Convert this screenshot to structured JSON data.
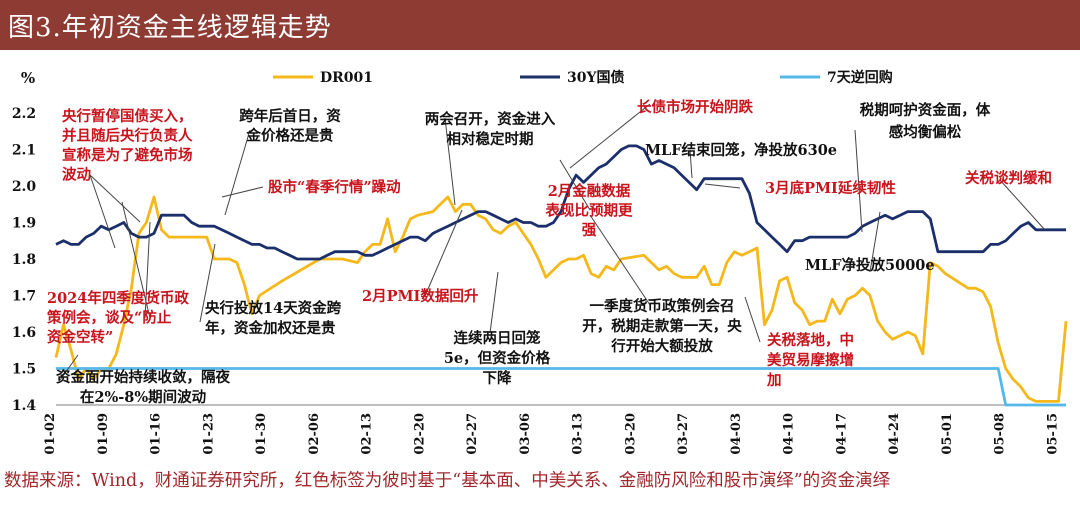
{
  "header": {
    "title": "图3.年初资金主线逻辑走势"
  },
  "chart_data": {
    "type": "line",
    "y_unit": "%",
    "ylim": [
      1.4,
      2.2
    ],
    "yticks": [
      "2.2",
      "2.1",
      "2.0",
      "1.9",
      "1.8",
      "1.7",
      "1.6",
      "1.5",
      "1.4"
    ],
    "x_tick_labels": [
      "01-02",
      "01-09",
      "01-16",
      "01-23",
      "01-30",
      "02-06",
      "02-13",
      "02-20",
      "02-27",
      "03-06",
      "03-13",
      "03-20",
      "03-27",
      "04-03",
      "04-10",
      "04-17",
      "04-24",
      "05-01",
      "05-08",
      "05-15"
    ],
    "legend": [
      "DR001",
      "30Y国债",
      "7天逆回购"
    ],
    "series": [
      {
        "name": "DR001",
        "color": "#f5b81b",
        "values": [
          [
            0,
            1.53
          ],
          [
            1,
            1.62
          ],
          [
            2,
            1.55
          ],
          [
            3,
            1.47
          ],
          [
            4,
            1.5
          ],
          [
            5,
            1.47
          ],
          [
            6,
            1.5
          ],
          [
            7,
            1.5
          ],
          [
            8,
            1.54
          ],
          [
            9,
            1.62
          ],
          [
            10,
            1.72
          ],
          [
            11,
            1.87
          ],
          [
            12,
            1.9
          ],
          [
            13,
            1.97
          ],
          [
            14,
            1.88
          ],
          [
            15,
            1.86
          ],
          [
            16,
            1.86
          ],
          [
            19,
            1.86
          ],
          [
            20,
            1.86
          ],
          [
            21,
            1.8
          ],
          [
            22,
            1.8
          ],
          [
            23,
            1.8
          ],
          [
            24,
            1.79
          ],
          [
            25,
            1.73
          ],
          [
            26,
            1.65
          ],
          [
            27,
            1.7
          ],
          [
            30,
            1.74
          ],
          [
            35,
            1.8
          ],
          [
            38,
            1.8
          ],
          [
            40,
            1.79
          ],
          [
            41,
            1.82
          ],
          [
            42,
            1.84
          ],
          [
            43,
            1.84
          ],
          [
            44,
            1.91
          ],
          [
            45,
            1.82
          ],
          [
            46,
            1.86
          ],
          [
            47,
            1.91
          ],
          [
            48,
            1.92
          ],
          [
            50,
            1.93
          ],
          [
            51,
            1.95
          ],
          [
            52,
            1.97
          ],
          [
            53,
            1.93
          ],
          [
            54,
            1.95
          ],
          [
            55,
            1.95
          ],
          [
            56,
            1.92
          ],
          [
            57,
            1.91
          ],
          [
            58,
            1.88
          ],
          [
            59,
            1.87
          ],
          [
            60,
            1.89
          ],
          [
            61,
            1.9
          ],
          [
            62,
            1.87
          ],
          [
            63,
            1.84
          ],
          [
            64,
            1.8
          ],
          [
            65,
            1.75
          ],
          [
            66,
            1.77
          ],
          [
            67,
            1.79
          ],
          [
            68,
            1.8
          ],
          [
            69,
            1.8
          ],
          [
            70,
            1.81
          ],
          [
            71,
            1.76
          ],
          [
            72,
            1.75
          ],
          [
            73,
            1.78
          ],
          [
            74,
            1.77
          ],
          [
            75,
            1.8
          ],
          [
            78,
            1.81
          ],
          [
            79,
            1.79
          ],
          [
            80,
            1.77
          ],
          [
            81,
            1.78
          ],
          [
            82,
            1.76
          ],
          [
            83,
            1.75
          ],
          [
            84,
            1.75
          ],
          [
            85,
            1.75
          ],
          [
            86,
            1.78
          ],
          [
            87,
            1.73
          ],
          [
            88,
            1.73
          ],
          [
            89,
            1.79
          ],
          [
            90,
            1.82
          ],
          [
            91,
            1.81
          ],
          [
            92,
            1.82
          ],
          [
            93,
            1.83
          ],
          [
            94,
            1.62
          ],
          [
            95,
            1.66
          ],
          [
            96,
            1.74
          ],
          [
            97,
            1.75
          ],
          [
            98,
            1.68
          ],
          [
            99,
            1.66
          ],
          [
            100,
            1.62
          ],
          [
            101,
            1.63
          ],
          [
            102,
            1.63
          ],
          [
            103,
            1.69
          ],
          [
            104,
            1.65
          ],
          [
            105,
            1.69
          ],
          [
            106,
            1.7
          ],
          [
            107,
            1.72
          ],
          [
            108,
            1.7
          ],
          [
            109,
            1.63
          ],
          [
            110,
            1.6
          ],
          [
            111,
            1.58
          ],
          [
            112,
            1.59
          ],
          [
            113,
            1.6
          ],
          [
            114,
            1.59
          ],
          [
            115,
            1.54
          ],
          [
            116,
            1.79
          ],
          [
            117,
            1.78
          ],
          [
            118,
            1.76
          ],
          [
            121,
            1.72
          ],
          [
            122,
            1.72
          ],
          [
            123,
            1.71
          ],
          [
            124,
            1.67
          ],
          [
            125,
            1.57
          ],
          [
            126,
            1.5
          ],
          [
            127,
            1.47
          ],
          [
            128,
            1.45
          ],
          [
            129,
            1.42
          ],
          [
            130,
            1.41
          ],
          [
            131,
            1.41
          ],
          [
            132,
            1.41
          ],
          [
            133,
            1.41
          ],
          [
            134,
            1.63
          ]
        ]
      },
      {
        "name": "30Y国债",
        "color": "#1b2f6b",
        "values": [
          [
            0,
            1.84
          ],
          [
            1,
            1.85
          ],
          [
            2,
            1.84
          ],
          [
            3,
            1.84
          ],
          [
            4,
            1.86
          ],
          [
            5,
            1.87
          ],
          [
            6,
            1.89
          ],
          [
            7,
            1.88
          ],
          [
            8,
            1.89
          ],
          [
            9,
            1.9
          ],
          [
            10,
            1.87
          ],
          [
            11,
            1.86
          ],
          [
            12,
            1.86
          ],
          [
            13,
            1.87
          ],
          [
            14,
            1.92
          ],
          [
            15,
            1.92
          ],
          [
            16,
            1.92
          ],
          [
            17,
            1.92
          ],
          [
            18,
            1.9
          ],
          [
            19,
            1.89
          ],
          [
            20,
            1.89
          ],
          [
            21,
            1.89
          ],
          [
            22,
            1.88
          ],
          [
            23,
            1.87
          ],
          [
            24,
            1.86
          ],
          [
            25,
            1.85
          ],
          [
            26,
            1.84
          ],
          [
            27,
            1.84
          ],
          [
            28,
            1.83
          ],
          [
            29,
            1.83
          ],
          [
            30,
            1.82
          ],
          [
            31,
            1.81
          ],
          [
            32,
            1.8
          ],
          [
            33,
            1.8
          ],
          [
            34,
            1.8
          ],
          [
            35,
            1.8
          ],
          [
            36,
            1.81
          ],
          [
            37,
            1.82
          ],
          [
            38,
            1.82
          ],
          [
            39,
            1.82
          ],
          [
            40,
            1.82
          ],
          [
            41,
            1.81
          ],
          [
            42,
            1.81
          ],
          [
            43,
            1.82
          ],
          [
            44,
            1.83
          ],
          [
            45,
            1.84
          ],
          [
            46,
            1.85
          ],
          [
            47,
            1.86
          ],
          [
            48,
            1.86
          ],
          [
            49,
            1.85
          ],
          [
            50,
            1.87
          ],
          [
            51,
            1.88
          ],
          [
            52,
            1.89
          ],
          [
            53,
            1.9
          ],
          [
            54,
            1.91
          ],
          [
            55,
            1.92
          ],
          [
            56,
            1.93
          ],
          [
            57,
            1.93
          ],
          [
            58,
            1.92
          ],
          [
            59,
            1.91
          ],
          [
            60,
            1.9
          ],
          [
            61,
            1.91
          ],
          [
            62,
            1.9
          ],
          [
            63,
            1.9
          ],
          [
            64,
            1.89
          ],
          [
            65,
            1.89
          ],
          [
            66,
            1.9
          ],
          [
            67,
            1.93
          ],
          [
            68,
            1.99
          ],
          [
            69,
            2.03
          ],
          [
            70,
            2.01
          ],
          [
            71,
            2.03
          ],
          [
            72,
            2.05
          ],
          [
            73,
            2.06
          ],
          [
            74,
            2.08
          ],
          [
            75,
            2.1
          ],
          [
            76,
            2.11
          ],
          [
            77,
            2.11
          ],
          [
            78,
            2.1
          ],
          [
            79,
            2.06
          ],
          [
            80,
            2.07
          ],
          [
            81,
            2.06
          ],
          [
            82,
            2.05
          ],
          [
            83,
            2.03
          ],
          [
            84,
            2.01
          ],
          [
            85,
            1.99
          ],
          [
            86,
            2.02
          ],
          [
            87,
            2.02
          ],
          [
            88,
            2.02
          ],
          [
            89,
            2.02
          ],
          [
            90,
            2.02
          ],
          [
            91,
            2.02
          ],
          [
            92,
            1.98
          ],
          [
            93,
            1.9
          ],
          [
            94,
            1.88
          ],
          [
            95,
            1.86
          ],
          [
            96,
            1.84
          ],
          [
            97,
            1.82
          ],
          [
            98,
            1.85
          ],
          [
            99,
            1.85
          ],
          [
            100,
            1.86
          ],
          [
            101,
            1.86
          ],
          [
            102,
            1.86
          ],
          [
            103,
            1.86
          ],
          [
            104,
            1.86
          ],
          [
            105,
            1.86
          ],
          [
            106,
            1.87
          ],
          [
            107,
            1.89
          ],
          [
            108,
            1.9
          ],
          [
            109,
            1.91
          ],
          [
            110,
            1.92
          ],
          [
            111,
            1.91
          ],
          [
            112,
            1.92
          ],
          [
            113,
            1.93
          ],
          [
            114,
            1.93
          ],
          [
            115,
            1.93
          ],
          [
            116,
            1.91
          ],
          [
            117,
            1.82
          ],
          [
            118,
            1.82
          ],
          [
            120,
            1.82
          ],
          [
            123,
            1.82
          ],
          [
            124,
            1.84
          ],
          [
            125,
            1.84
          ],
          [
            126,
            1.85
          ],
          [
            127,
            1.87
          ],
          [
            128,
            1.89
          ],
          [
            129,
            1.9
          ],
          [
            130,
            1.88
          ],
          [
            131,
            1.88
          ],
          [
            132,
            1.88
          ],
          [
            133,
            1.88
          ],
          [
            134,
            1.88
          ]
        ]
      },
      {
        "name": "7天逆回购",
        "color": "#56b8ea",
        "values": [
          [
            0,
            1.5
          ],
          [
            125,
            1.5
          ],
          [
            126,
            1.4
          ],
          [
            134,
            1.4
          ]
        ]
      }
    ],
    "annotations": [
      {
        "lines": [
          "央行暂停国债买入，",
          "并且随后央行负责人",
          "宣称是为了避免市场",
          "波动"
        ],
        "color": "red"
      },
      {
        "lines": [
          "跨年后首日，资",
          "金价格还是贵"
        ],
        "color": "black"
      },
      {
        "lines": [
          "股市“春季行情”躁动"
        ],
        "color": "red"
      },
      {
        "lines": [
          "两会召开，资金进入",
          "相对稳定时期"
        ],
        "color": "black"
      },
      {
        "lines": [
          "长债市场开始阴跌"
        ],
        "color": "red"
      },
      {
        "lines": [
          "税期呵护资金面，体",
          "感均衡偏松"
        ],
        "color": "black"
      },
      {
        "lines": [
          "MLF结束回笼，净投放630e"
        ],
        "color": "black"
      },
      {
        "lines": [
          "2月金融数据",
          "表现比预期更",
          "强"
        ],
        "color": "red"
      },
      {
        "lines": [
          "3月底PMI延续韧性"
        ],
        "color": "red"
      },
      {
        "lines": [
          "关税谈判缓和"
        ],
        "color": "red"
      },
      {
        "lines": [
          "MLF净投放5000e"
        ],
        "color": "black"
      },
      {
        "lines": [
          "2024年四季度货币政",
          "策例会，谈及“防止",
          "资金空转”"
        ],
        "color": "red"
      },
      {
        "lines": [
          "2月PMI数据回升"
        ],
        "color": "red"
      },
      {
        "lines": [
          "央行投放14天资金跨",
          "年，资金加权还是贵"
        ],
        "color": "black"
      },
      {
        "lines": [
          "一季度货币政策例会召",
          "开，税期走款第一天，央",
          "行开始大额投放"
        ],
        "color": "black"
      },
      {
        "lines": [
          "连续两日回笼",
          "5e，但资金价格",
          "下降"
        ],
        "color": "black"
      },
      {
        "lines": [
          "关税落地，中",
          "美贸易摩擦增",
          "加"
        ],
        "color": "red"
      },
      {
        "lines": [
          "资金面开始持续收敛，隔夜",
          "在2%-8%期间波动"
        ],
        "color": "black"
      }
    ]
  },
  "footer": {
    "source_text": "数据来源：Wind，财通证券研究所，红色标签为彼时基于“基本面、中美关系、金融防风险和股市演绎”的资金演绎"
  }
}
